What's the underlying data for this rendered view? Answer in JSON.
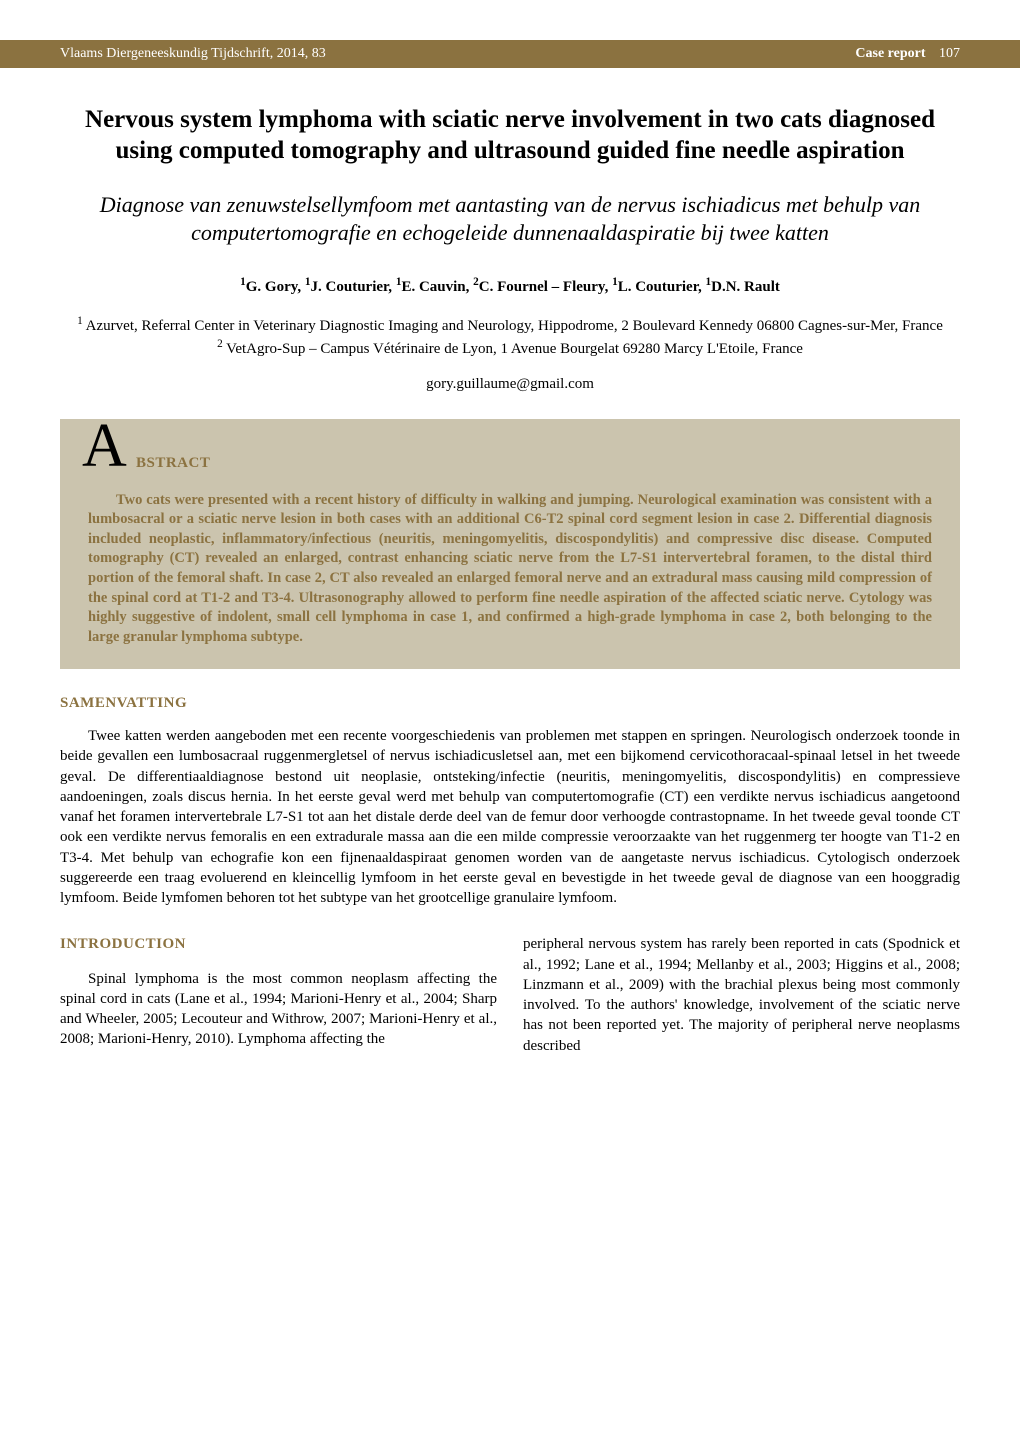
{
  "colors": {
    "accent": "#8b7240",
    "abstract_bg": "#cbc4ae",
    "page_bg": "#ffffff",
    "body_text": "#000000",
    "header_text": "#ffffff"
  },
  "typography": {
    "body_font": "Times New Roman",
    "title_size_pt": 19,
    "subtitle_size_pt": 16,
    "body_size_pt": 11,
    "heading_size_pt": 11,
    "big_a_size_pt": 46
  },
  "header": {
    "journal": "Vlaams Diergeneeskundig Tijdschrift, 2014, 83",
    "report_label": "Case report",
    "page_number": "107"
  },
  "title": "Nervous system lymphoma with sciatic nerve involvement in two cats diagnosed using computed tomography and ultrasound guided fine needle aspiration",
  "subtitle": "Diagnose van zenuwstelsellymfoom met aantasting van de nervus ischiadicus met behulp van computertomografie en echogeleide dunnenaaldaspiratie bij twee katten",
  "authors_html": "<span class='sup'>1</span>G. Gory, <span class='sup'>1</span>J. Couturier, <span class='sup'>1</span>E. Cauvin, <span class='sup'>2</span>C. Fournel – Fleury, <span class='sup'>1</span>L. Couturier, <span class='sup'>1</span>D.N. Rault",
  "affiliations_html": "<span class='sup'>1</span> Azurvet, Referral Center in Veterinary Diagnostic Imaging and Neurology, Hippodrome, 2 Boulevard Kennedy 06800 Cagnes-sur-Mer, France<br><span class='sup'>2</span> VetAgro-Sup – Campus Vétérinaire de Lyon, 1 Avenue Bourgelat 69280 Marcy L'Etoile, France",
  "email": "gory.guillaume@gmail.com",
  "abstract": {
    "dropcap": "A",
    "label": "BSTRACT",
    "body": "Two cats were presented with a recent history of difficulty in walking and jumping. Neurological examination was consistent with a lumbosacral or a sciatic nerve lesion in both cases with an additional C6-T2 spinal cord segment lesion in case 2. Differential diagnosis included neoplastic, inflammatory/infectious (neuritis, meningomyelitis, discospondylitis) and compressive disc disease. Computed tomography (CT) revealed an enlarged, contrast enhancing sciatic nerve from the L7-S1 intervertebral foramen, to the distal third portion of the femoral shaft. In case 2, CT also revealed an enlarged femoral nerve and an extradural mass causing mild compression of the spinal cord at T1-2 and T3-4. Ultrasonography allowed to perform fine needle aspiration of the affected sciatic nerve. Cytology was highly suggestive of indolent, small cell lymphoma in case 1, and confirmed a high-grade lymphoma in case 2, both belonging to the large granular lymphoma subtype."
  },
  "samenvatting": {
    "heading": "SAMENVATTING",
    "body": "Twee katten werden aangeboden met een recente voorgeschiedenis van problemen met stappen en springen. Neurologisch onderzoek toonde in beide gevallen een lumbosacraal ruggenmergletsel of nervus ischiadicusletsel aan, met een bijkomend cervicothoracaal-spinaal letsel in het tweede geval. De differentiaaldiagnose bestond uit neoplasie, ontsteking/infectie (neuritis, meningomyelitis, discospondylitis) en compressieve aandoeningen, zoals discus hernia. In het eerste geval werd met behulp van computertomografie (CT) een verdikte nervus ischiadicus aangetoond vanaf het foramen intervertebrale L7-S1 tot aan het distale derde deel van de femur door verhoogde contrastopname. In het tweede geval toonde CT ook een verdikte nervus femoralis en een extradurale massa aan die een milde compressie veroorzaakte van het ruggenmerg ter hoogte van T1-2 en T3-4. Met behulp van echografie kon een fijnenaaldaspiraat genomen worden van de aangetaste nervus ischiadicus. Cytologisch onderzoek suggereerde een traag evoluerend en kleincellig lymfoom in het eerste geval en bevestigde in het tweede geval de diagnose van een hooggradig lymfoom. Beide lymfomen behoren tot het subtype van het grootcellige granulaire lymfoom."
  },
  "introduction": {
    "heading": "INTRODUCTION",
    "col1": "Spinal lymphoma is the most common neoplasm affecting the spinal cord in cats (Lane et al., 1994; Marioni-Henry et al., 2004; Sharp and Wheeler, 2005; Lecouteur and Withrow, 2007; Marioni-Henry et al., 2008; Marioni-Henry, 2010). Lymphoma affecting the",
    "col2": "peripheral nervous system has rarely been reported in cats (Spodnick et al., 1992; Lane et al., 1994; Mellanby et al., 2003; Higgins et al., 2008; Linzmann et al., 2009) with the brachial plexus being most commonly involved. To the authors' knowledge, involvement of the sciatic nerve has not been reported yet. The majority of peripheral nerve neoplasms described"
  }
}
